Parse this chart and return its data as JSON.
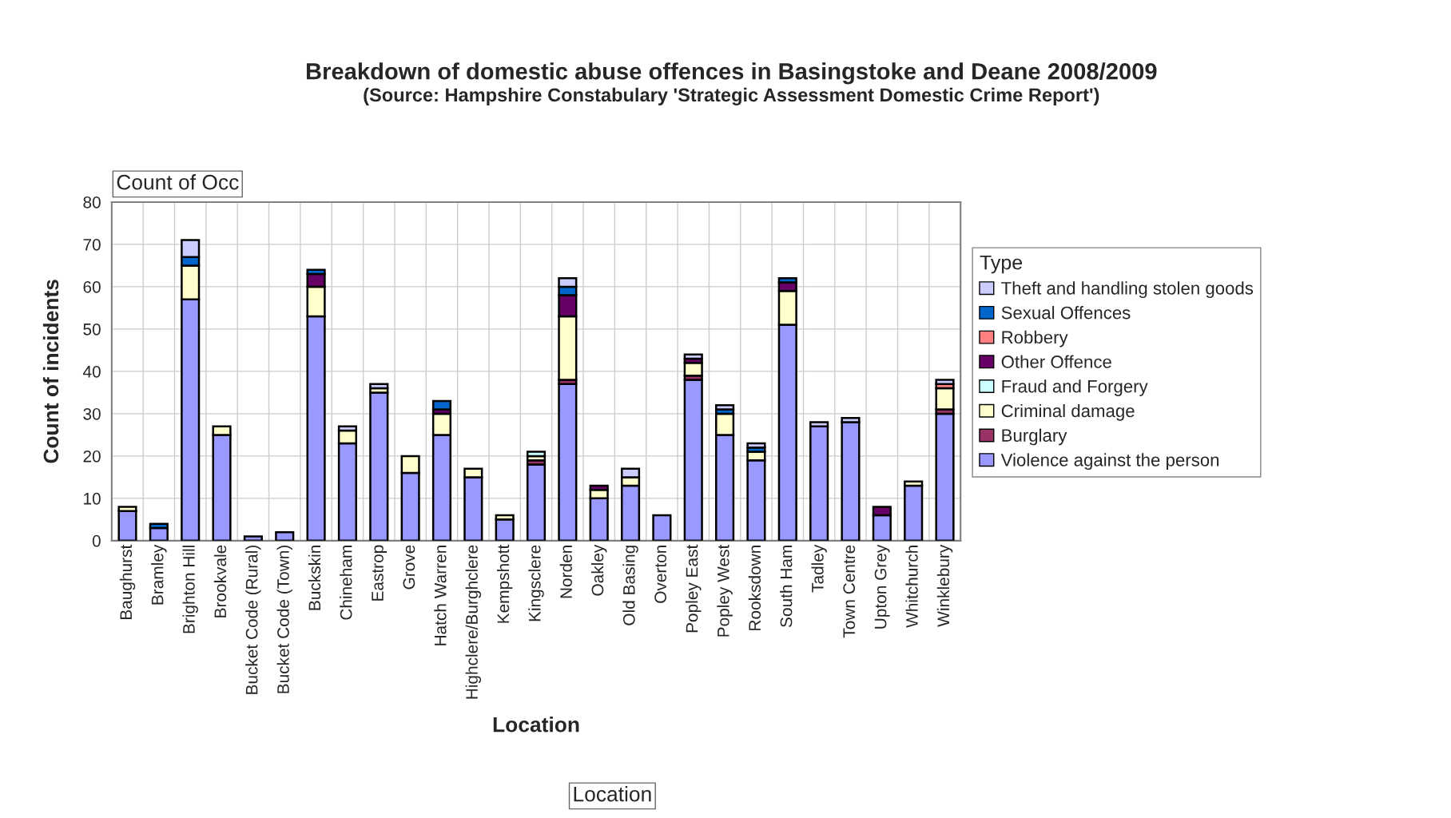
{
  "chart_data": {
    "type": "bar",
    "stacked": true,
    "title": "Breakdown of domestic abuse offences in Basingstoke and Deane 2008/2009",
    "subtitle": "(Source: Hampshire Constabulary 'Strategic Assessment Domestic Crime Report')",
    "xlabel": "Location",
    "ylabel": "Count of incidents",
    "legend_title": "Type",
    "annotations": [
      "Count of Occ",
      "Location"
    ],
    "categories": [
      "Baughurst",
      "Bramley",
      "Brighton Hill",
      "Brookvale",
      "Bucket Code (Rural)",
      "Bucket Code (Town)",
      "Buckskin",
      "Chineham",
      "Eastrop",
      "Grove",
      "Hatch Warren",
      "Highclere/Burghclere",
      "Kempshott",
      "Kingsclere",
      "Norden",
      "Oakley",
      "Old Basing",
      "Overton",
      "Popley East",
      "Popley West",
      "Rooksdown",
      "South Ham",
      "Tadley",
      "Town Centre",
      "Upton Grey",
      "Whitchurch",
      "Winklebury"
    ],
    "series": [
      {
        "name": "Violence against the person",
        "color": "#9999ff",
        "values": [
          7,
          3,
          57,
          25,
          1,
          2,
          53,
          23,
          35,
          16,
          25,
          15,
          5,
          18,
          37,
          10,
          13,
          6,
          38,
          25,
          19,
          51,
          27,
          28,
          6,
          13,
          30
        ]
      },
      {
        "name": "Burglary",
        "color": "#993366",
        "values": [
          0,
          0,
          0,
          0,
          0,
          0,
          0,
          0,
          0,
          0,
          0,
          0,
          0,
          1,
          1,
          0,
          0,
          0,
          1,
          0,
          0,
          0,
          0,
          0,
          0,
          0,
          1
        ]
      },
      {
        "name": "Criminal damage",
        "color": "#ffffcc",
        "values": [
          1,
          0,
          8,
          2,
          0,
          0,
          7,
          3,
          1,
          4,
          5,
          2,
          1,
          1,
          15,
          2,
          2,
          0,
          3,
          5,
          2,
          8,
          0,
          0,
          0,
          1,
          5
        ]
      },
      {
        "name": "Fraud and Forgery",
        "color": "#ccffff",
        "values": [
          0,
          0,
          0,
          0,
          0,
          0,
          0,
          0,
          0,
          0,
          0,
          0,
          0,
          1,
          0,
          0,
          0,
          0,
          0,
          0,
          0,
          0,
          0,
          0,
          0,
          0,
          0
        ]
      },
      {
        "name": "Other Offence",
        "color": "#660066",
        "values": [
          0,
          0,
          0,
          0,
          0,
          0,
          3,
          0,
          0,
          0,
          1,
          0,
          0,
          0,
          5,
          1,
          0,
          0,
          1,
          0,
          0,
          2,
          0,
          0,
          2,
          0,
          0
        ]
      },
      {
        "name": "Robbery",
        "color": "#ff8080",
        "values": [
          0,
          0,
          0,
          0,
          0,
          0,
          0,
          0,
          0,
          0,
          0,
          0,
          0,
          0,
          0,
          0,
          0,
          0,
          0,
          0,
          0,
          0,
          0,
          0,
          0,
          0,
          1
        ]
      },
      {
        "name": "Sexual Offences",
        "color": "#0066cc",
        "values": [
          0,
          1,
          2,
          0,
          0,
          0,
          1,
          0,
          0,
          0,
          2,
          0,
          0,
          0,
          2,
          0,
          0,
          0,
          0,
          1,
          1,
          1,
          0,
          0,
          0,
          0,
          0
        ]
      },
      {
        "name": "Theft and handling stolen goods",
        "color": "#ccccff",
        "values": [
          0,
          0,
          4,
          0,
          0,
          0,
          0,
          1,
          1,
          0,
          0,
          0,
          0,
          0,
          2,
          0,
          2,
          0,
          1,
          1,
          1,
          0,
          1,
          1,
          0,
          0,
          1
        ]
      }
    ],
    "ylim": [
      0,
      80
    ],
    "yticks": [
      0,
      10,
      20,
      30,
      40,
      50,
      60,
      70,
      80
    ],
    "grid": true,
    "legend": "right"
  }
}
